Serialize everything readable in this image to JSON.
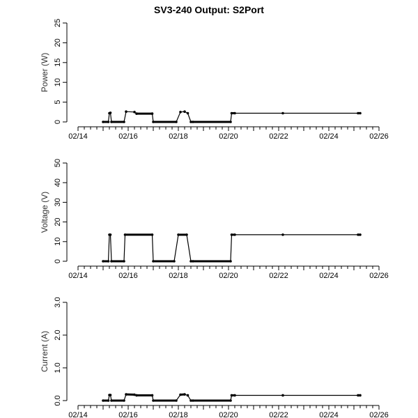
{
  "page": {
    "title": "SV3-240 Output: S2Port"
  },
  "chart_data": [
    {
      "type": "line",
      "title": "SV3-240 Output: S2Port",
      "ylabel": "Power (W)",
      "xlabel": "",
      "ylim": [
        0,
        25
      ],
      "yticks": [
        0,
        5,
        10,
        15,
        20,
        25
      ],
      "ytick_labels": [
        "0",
        "5",
        "10",
        "15",
        "20",
        "25"
      ],
      "xticks": [
        "02/14",
        "02/16",
        "02/18",
        "02/20",
        "02/22",
        "02/24",
        "02/26"
      ],
      "xlim": [
        "02/14",
        "02/26"
      ],
      "series": [
        {
          "points": [
            [
              "02/15 00:00",
              0
            ],
            [
              "02/15 05:00",
              0
            ],
            [
              "02/15 06:00",
              2.2
            ],
            [
              "02/15 07:00",
              2.3
            ],
            [
              "02/15 08:00",
              0
            ],
            [
              "02/15 20:00",
              0
            ],
            [
              "02/15 22:00",
              2.6
            ],
            [
              "02/16 06:00",
              2.5
            ],
            [
              "02/16 08:00",
              2.1
            ],
            [
              "02/16 23:00",
              2.1
            ],
            [
              "02/17 00:00",
              0
            ],
            [
              "02/17 22:00",
              0
            ],
            [
              "02/18 02:00",
              2.5
            ],
            [
              "02/18 06:00",
              2.6
            ],
            [
              "02/18 09:00",
              2.2
            ],
            [
              "02/18 12:00",
              0
            ],
            [
              "02/18 14:00",
              0
            ],
            [
              "02/20 02:00",
              0
            ],
            [
              "02/20 03:00",
              2.2
            ],
            [
              "02/20 06:00",
              2.2
            ],
            [
              "02/22 04:00",
              2.2
            ],
            [
              "02/25 04:00",
              2.2
            ],
            [
              "02/25 06:00",
              2.2
            ]
          ]
        }
      ]
    },
    {
      "type": "line",
      "ylabel": "Voltage (V)",
      "xlabel": "",
      "ylim": [
        0,
        50
      ],
      "yticks": [
        0,
        10,
        20,
        30,
        40,
        50
      ],
      "ytick_labels": [
        "0",
        "10",
        "20",
        "30",
        "40",
        "50"
      ],
      "xticks": [
        "02/14",
        "02/16",
        "02/18",
        "02/20",
        "02/22",
        "02/24",
        "02/26"
      ],
      "xlim": [
        "02/14",
        "02/26"
      ],
      "series": [
        {
          "points": [
            [
              "02/15 00:00",
              0
            ],
            [
              "02/15 05:00",
              0
            ],
            [
              "02/15 06:00",
              13.5
            ],
            [
              "02/15 07:00",
              13.5
            ],
            [
              "02/15 08:00",
              0
            ],
            [
              "02/15 20:00",
              0
            ],
            [
              "02/15 21:00",
              13.5
            ],
            [
              "02/16 23:00",
              13.5
            ],
            [
              "02/17 00:00",
              0
            ],
            [
              "02/17 20:00",
              0
            ],
            [
              "02/18 00:00",
              13.5
            ],
            [
              "02/18 08:00",
              13.5
            ],
            [
              "02/18 12:00",
              0
            ],
            [
              "02/18 14:00",
              0
            ],
            [
              "02/20 02:00",
              0
            ],
            [
              "02/20 03:00",
              13.5
            ],
            [
              "02/20 06:00",
              13.5
            ],
            [
              "02/22 04:00",
              13.5
            ],
            [
              "02/25 04:00",
              13.5
            ],
            [
              "02/25 06:00",
              13.5
            ]
          ]
        }
      ]
    },
    {
      "type": "line",
      "ylabel": "Current (A)",
      "xlabel": "",
      "ylim": [
        0,
        3
      ],
      "yticks": [
        0,
        1,
        2,
        3
      ],
      "ytick_labels": [
        "0.0",
        "1.0",
        "2.0",
        "3.0"
      ],
      "xticks": [
        "02/14",
        "02/16",
        "02/18",
        "02/20",
        "02/22",
        "02/24",
        "02/26"
      ],
      "xlim": [
        "02/14",
        "02/26"
      ],
      "series": [
        {
          "points": [
            [
              "02/15 00:00",
              0
            ],
            [
              "02/15 05:00",
              0
            ],
            [
              "02/15 06:00",
              0.17
            ],
            [
              "02/15 07:00",
              0.17
            ],
            [
              "02/15 08:00",
              0
            ],
            [
              "02/15 20:00",
              0
            ],
            [
              "02/15 22:00",
              0.19
            ],
            [
              "02/16 06:00",
              0.18
            ],
            [
              "02/16 08:00",
              0.16
            ],
            [
              "02/16 23:00",
              0.16
            ],
            [
              "02/17 00:00",
              0
            ],
            [
              "02/17 22:00",
              0
            ],
            [
              "02/18 02:00",
              0.18
            ],
            [
              "02/18 06:00",
              0.19
            ],
            [
              "02/18 09:00",
              0.16
            ],
            [
              "02/18 12:00",
              0
            ],
            [
              "02/18 14:00",
              0
            ],
            [
              "02/20 02:00",
              0
            ],
            [
              "02/20 03:00",
              0.16
            ],
            [
              "02/20 06:00",
              0.16
            ],
            [
              "02/22 04:00",
              0.16
            ],
            [
              "02/25 04:00",
              0.16
            ],
            [
              "02/25 06:00",
              0.16
            ]
          ]
        }
      ]
    }
  ]
}
